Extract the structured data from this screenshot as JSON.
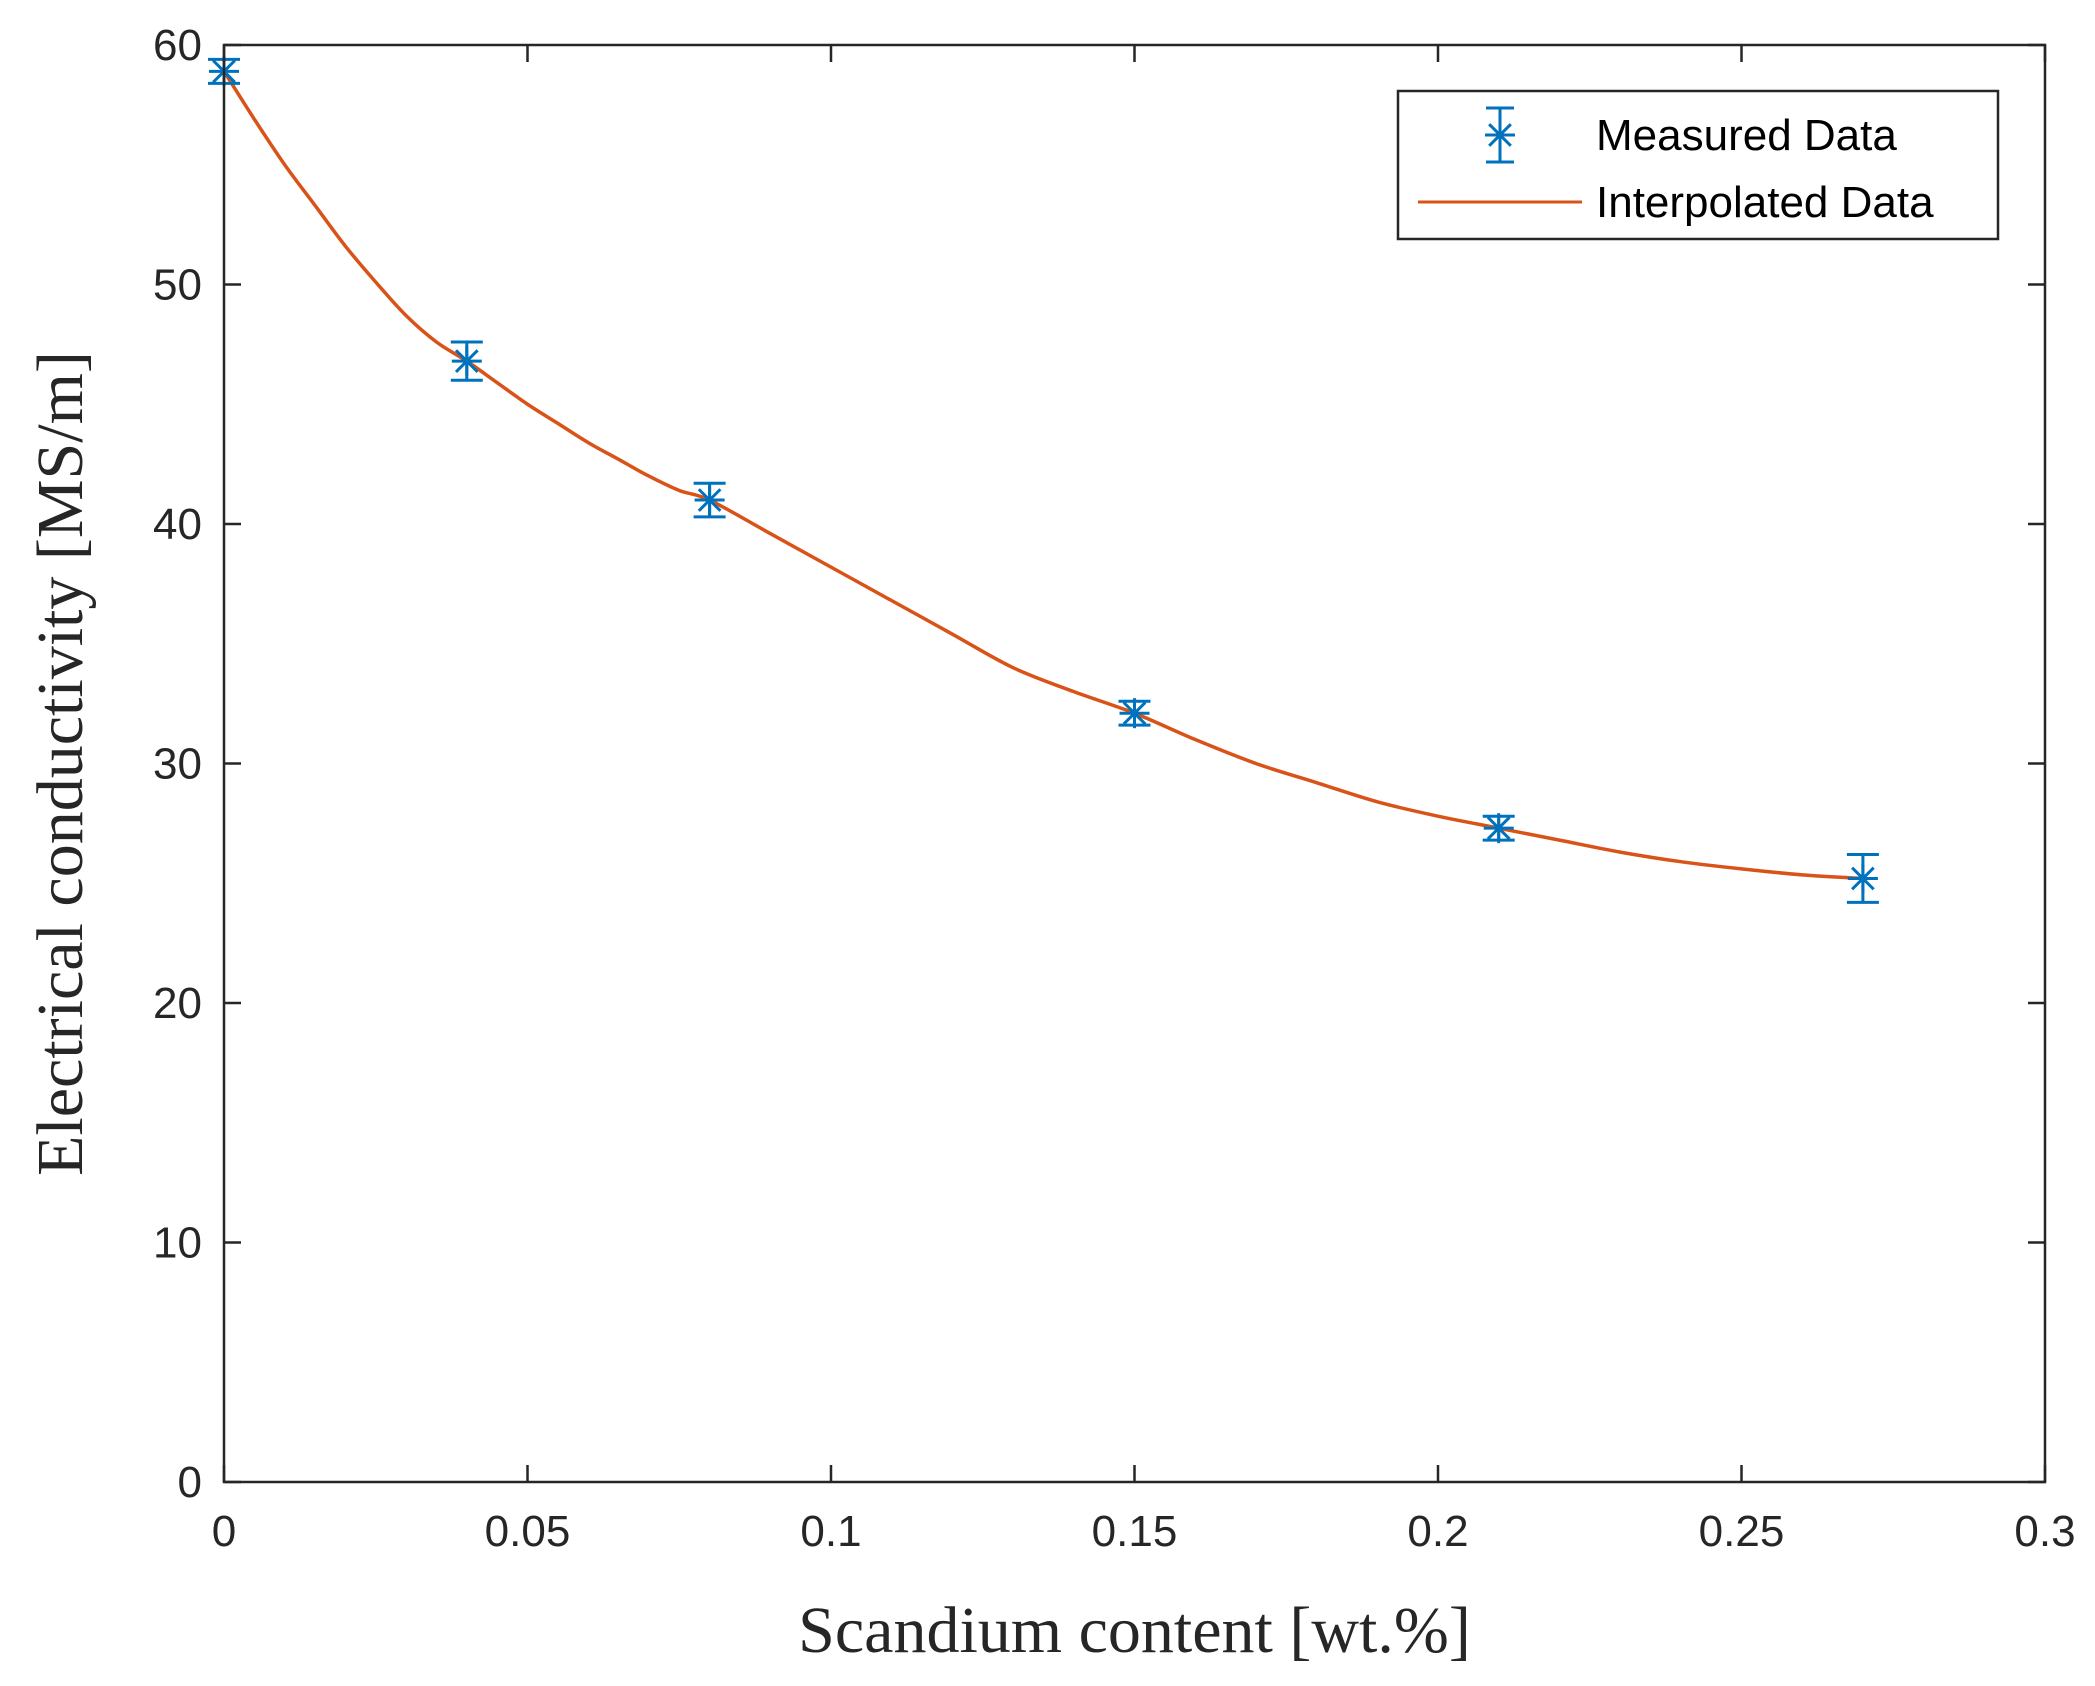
{
  "chart_data": {
    "type": "line",
    "title": "",
    "xlabel": "Scandium content [wt.%]",
    "ylabel": "Electrical conductivity [MS/m]",
    "xlim": [
      0,
      0.3
    ],
    "ylim": [
      0,
      60
    ],
    "xticks": [
      0,
      0.05,
      0.1,
      0.15,
      0.2,
      0.25,
      0.3
    ],
    "xtick_labels": [
      "0",
      "0.05",
      "0.1",
      "0.15",
      "0.2",
      "0.25",
      "0.3"
    ],
    "yticks": [
      0,
      10,
      20,
      30,
      40,
      50,
      60
    ],
    "ytick_labels": [
      "0",
      "10",
      "20",
      "30",
      "40",
      "50",
      "60"
    ],
    "grid": false,
    "legend_position": "top-right",
    "series": [
      {
        "name": "Measured Data",
        "kind": "errorbar",
        "marker": "asterisk",
        "color": "#0072BD",
        "x": [
          0,
          0.04,
          0.08,
          0.15,
          0.21,
          0.27
        ],
        "y": [
          58.9,
          46.8,
          41.0,
          32.1,
          27.3,
          25.2
        ],
        "error": [
          0.5,
          0.8,
          0.7,
          0.5,
          0.5,
          1.0
        ]
      },
      {
        "name": "Interpolated Data",
        "kind": "line",
        "color": "#D95319",
        "x": [
          0,
          0.005,
          0.01,
          0.015,
          0.02,
          0.025,
          0.03,
          0.035,
          0.04,
          0.045,
          0.05,
          0.055,
          0.06,
          0.065,
          0.07,
          0.075,
          0.08,
          0.09,
          0.1,
          0.11,
          0.12,
          0.13,
          0.14,
          0.15,
          0.16,
          0.17,
          0.18,
          0.19,
          0.2,
          0.21,
          0.22,
          0.23,
          0.24,
          0.25,
          0.26,
          0.27
        ],
        "y": [
          58.9,
          56.9,
          55.0,
          53.3,
          51.6,
          50.1,
          48.7,
          47.6,
          46.8,
          45.9,
          45.0,
          44.2,
          43.4,
          42.7,
          42.0,
          41.4,
          41.0,
          39.6,
          38.2,
          36.8,
          35.4,
          34.0,
          33.0,
          32.1,
          31.0,
          30.0,
          29.2,
          28.4,
          27.8,
          27.3,
          26.8,
          26.3,
          25.9,
          25.6,
          25.35,
          25.2
        ]
      }
    ]
  }
}
